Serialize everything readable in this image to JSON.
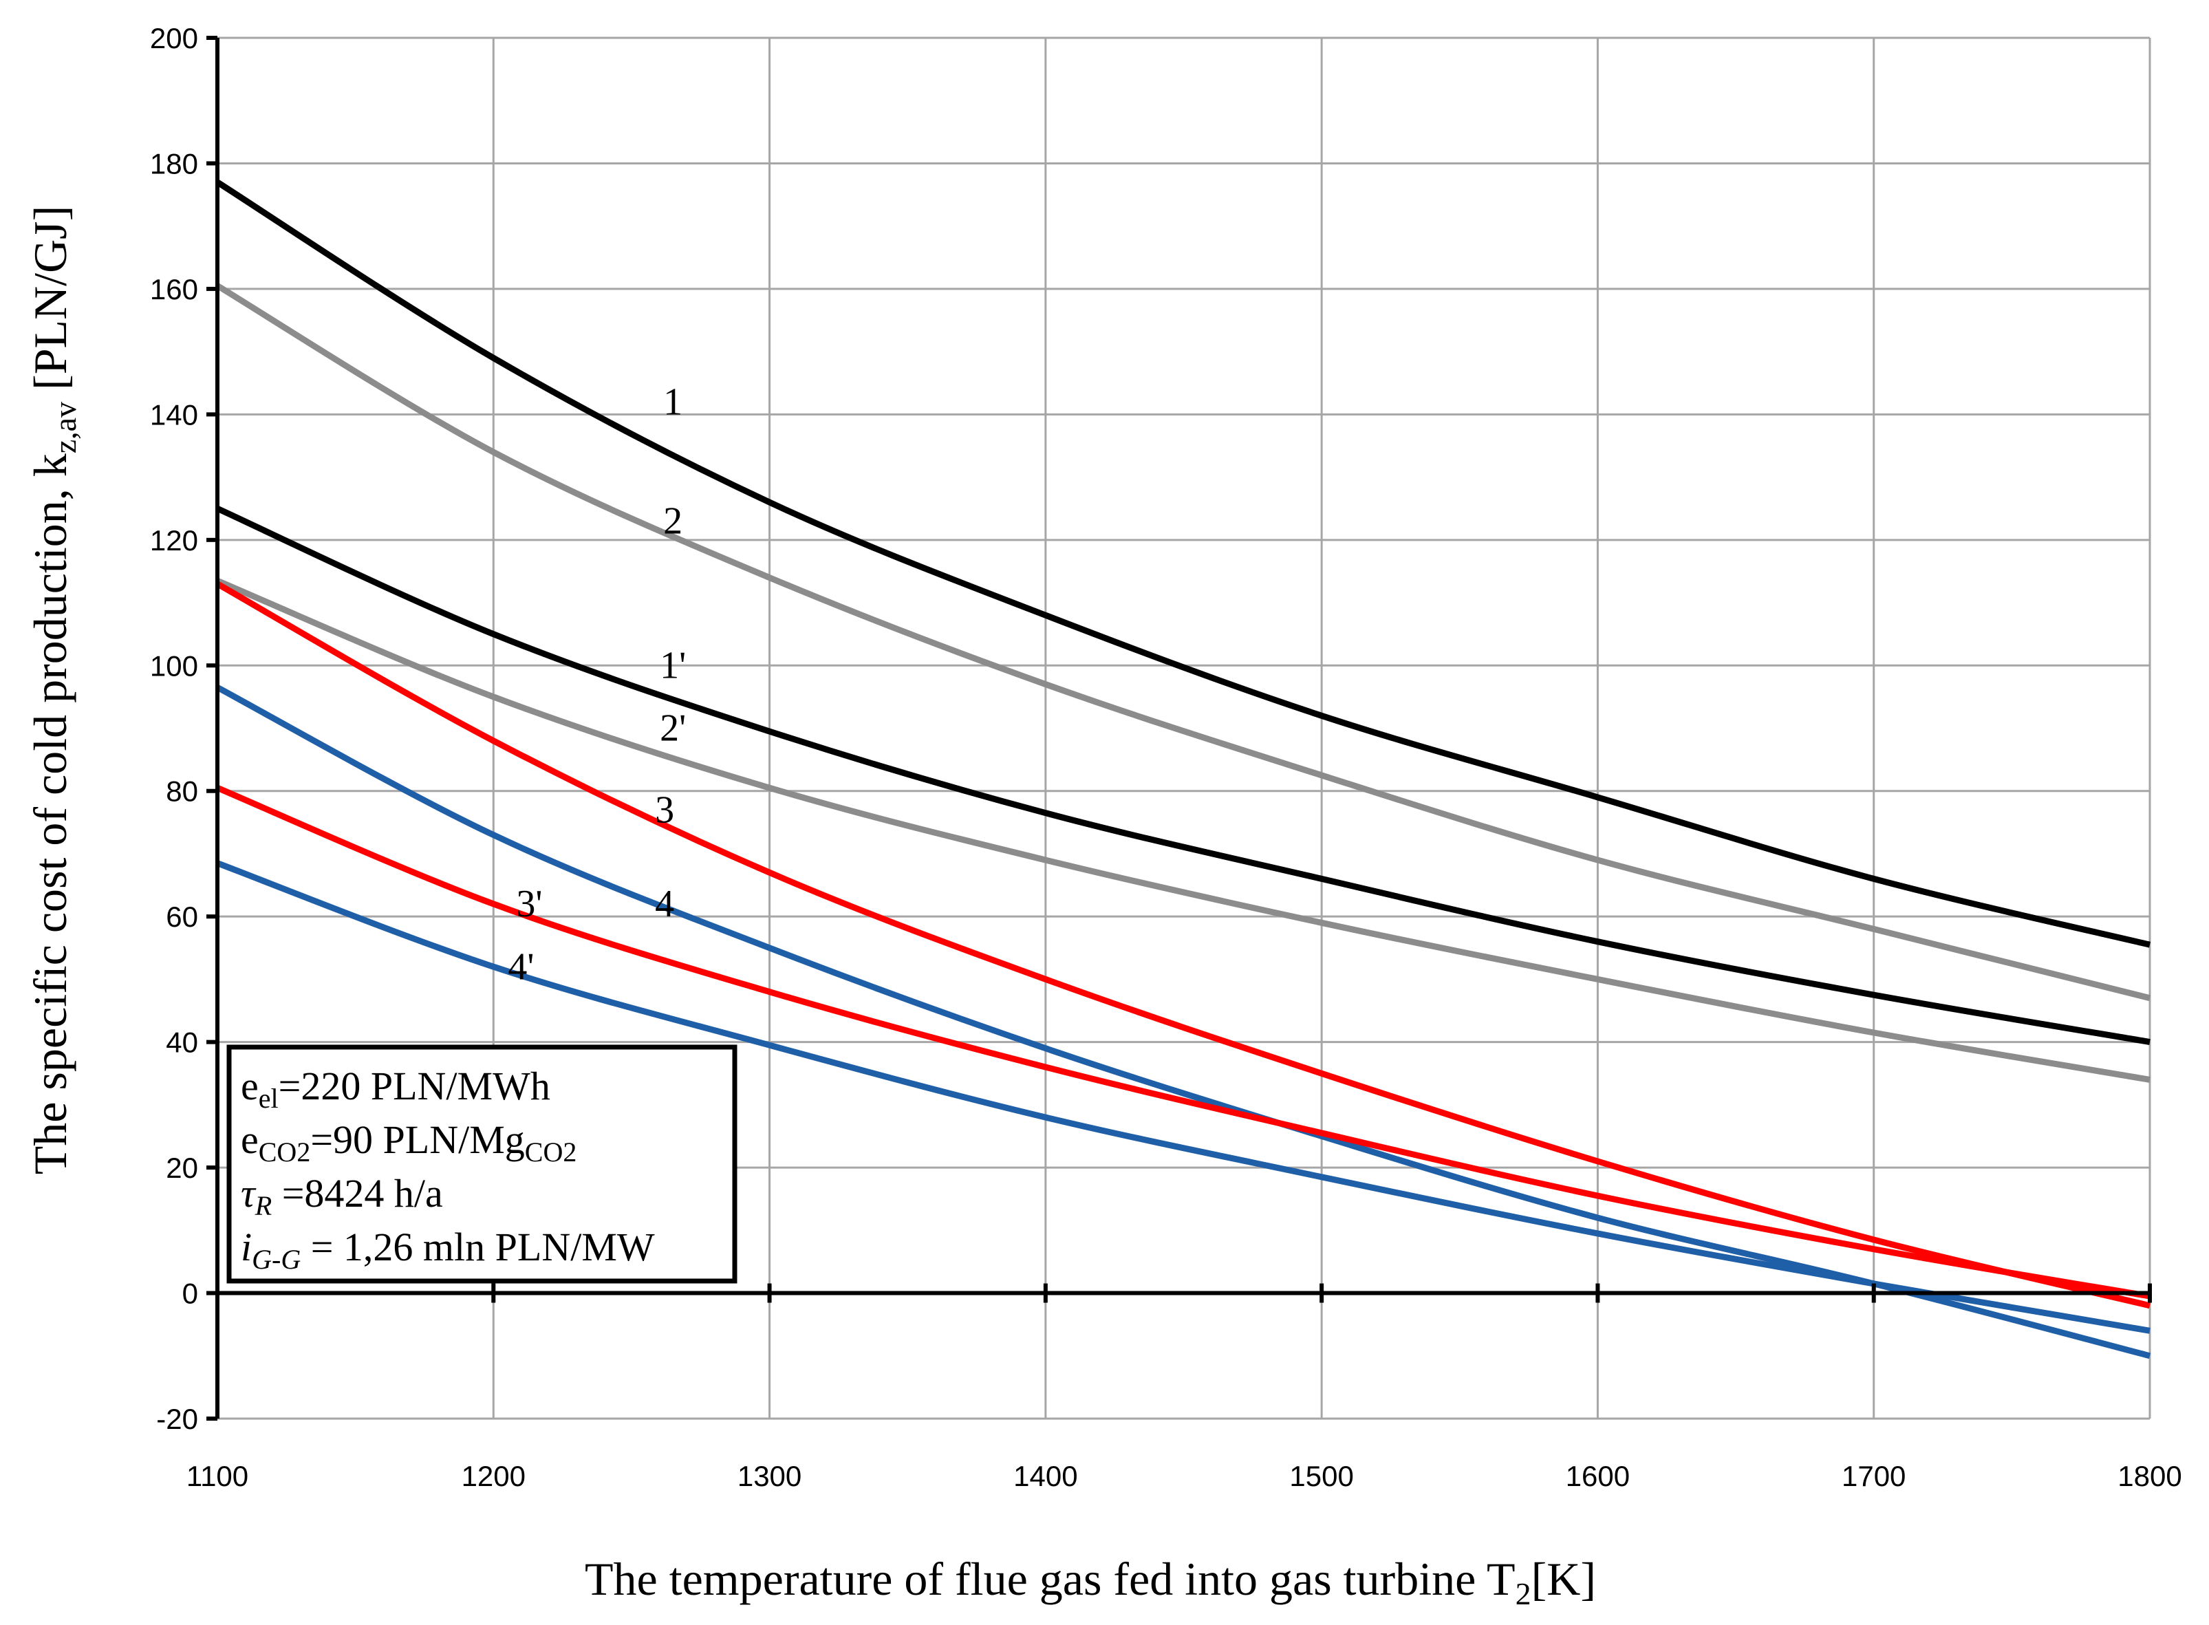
{
  "chart_data": {
    "type": "line",
    "xlabel": {
      "main": "The temperature of flue gas fed into gas turbine T",
      "sub": "2",
      "unit": "[K]"
    },
    "ylabel": {
      "main": "The specific cost of cold production, k",
      "sub": "z,av",
      "unit": " [PLN/GJ]"
    },
    "xlim": [
      1100,
      1800
    ],
    "ylim": [
      -20,
      200
    ],
    "x_ticks": [
      1100,
      1200,
      1300,
      1400,
      1500,
      1600,
      1700,
      1800
    ],
    "y_ticks": [
      -20,
      0,
      20,
      40,
      60,
      80,
      100,
      120,
      140,
      160,
      180,
      200
    ],
    "grid": true,
    "x": [
      1100,
      1200,
      1300,
      1400,
      1500,
      1600,
      1700,
      1800
    ],
    "series": [
      {
        "name": "1",
        "label_at": [
          1265,
          140
        ],
        "color": "#000000",
        "values": [
          177,
          149,
          126,
          108,
          92,
          79,
          66,
          55.5
        ]
      },
      {
        "name": "2",
        "label_at": [
          1265,
          121
        ],
        "color": "#8c8c8c",
        "values": [
          160.5,
          134,
          114,
          97,
          82.5,
          69,
          58,
          47
        ]
      },
      {
        "name": "1'",
        "label_at": [
          1265,
          98
        ],
        "color": "#000000",
        "values": [
          125,
          105,
          89.5,
          76.5,
          66,
          56,
          47.5,
          40
        ]
      },
      {
        "name": "2'",
        "label_at": [
          1265,
          88
        ],
        "color": "#8c8c8c",
        "values": [
          113.5,
          95,
          80.5,
          69,
          59,
          50,
          41.5,
          34
        ]
      },
      {
        "name": "3",
        "label_at": [
          1262,
          75
        ],
        "color": "#ff0000",
        "values": [
          113,
          88,
          67,
          50,
          35,
          21,
          8.5,
          -2
        ]
      },
      {
        "name": "4",
        "label_at": [
          1262,
          60
        ],
        "color": "#1f5fa8",
        "values": [
          96.5,
          73,
          55,
          39,
          25,
          12,
          1.5,
          -10
        ]
      },
      {
        "name": "3'",
        "label_at": [
          1213,
          60
        ],
        "color": "#ff0000",
        "values": [
          80.5,
          62,
          48,
          36,
          25.5,
          15.5,
          7,
          -0.5
        ]
      },
      {
        "name": "4'",
        "label_at": [
          1210,
          50
        ],
        "color": "#1f5fa8",
        "values": [
          68.5,
          52,
          39.5,
          28,
          18.5,
          9.5,
          1.5,
          -6
        ]
      }
    ]
  },
  "info_box": {
    "line1": {
      "var": "e",
      "sub": "el",
      "rest": "=220 PLN/MWh"
    },
    "line2": {
      "var": "e",
      "sub": "CO2",
      "rest": "=90 PLN/Mg",
      "rest_sub": "CO2"
    },
    "line3": {
      "var": "τ",
      "sub": "R",
      "rest": " =8424 h/a"
    },
    "line4": {
      "var": "i",
      "sub": "G-G",
      "rest": " = 1,26 mln PLN/MW"
    }
  }
}
